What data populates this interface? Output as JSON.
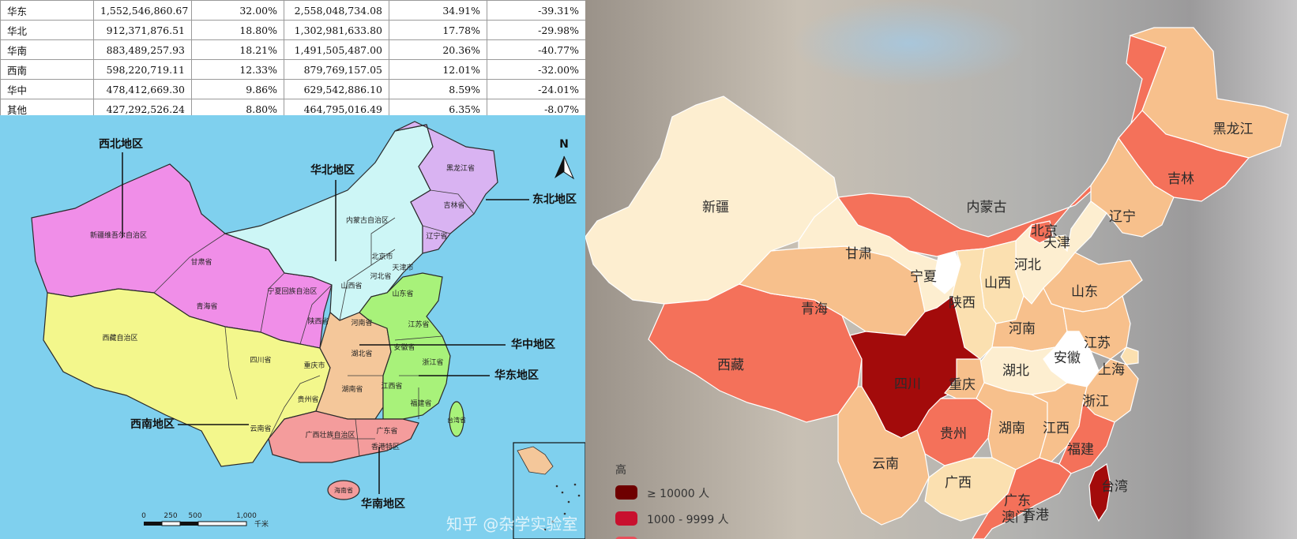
{
  "table": {
    "rows": [
      {
        "region": "华东",
        "v1": "1,552,546,860.67",
        "p1": "32.00%",
        "v2": "2,558,048,734.08",
        "p2": "34.91%",
        "chg": "-39.31%"
      },
      {
        "region": "华北",
        "v1": "912,371,876.51",
        "p1": "18.80%",
        "v2": "1,302,981,633.80",
        "p2": "17.78%",
        "chg": "-29.98%"
      },
      {
        "region": "华南",
        "v1": "883,489,257.93",
        "p1": "18.21%",
        "v2": "1,491,505,487.00",
        "p2": "20.36%",
        "chg": "-40.77%"
      },
      {
        "region": "西南",
        "v1": "598,220,719.11",
        "p1": "12.33%",
        "v2": "879,769,157.05",
        "p2": "12.01%",
        "chg": "-32.00%"
      },
      {
        "region": "华中",
        "v1": "478,412,669.30",
        "p1": "9.86%",
        "v2": "629,542,886.10",
        "p2": "8.59%",
        "chg": "-24.01%"
      },
      {
        "region": "其他",
        "v1": "427,292,526.24",
        "p1": "8.80%",
        "v2": "464,795,016.49",
        "p2": "6.35%",
        "chg": "-8.07%"
      }
    ]
  },
  "left_map": {
    "north_arrow": "N",
    "regions": {
      "northwest": "西北地区",
      "north": "华北地区",
      "northeast": "东北地区",
      "central": "华中地区",
      "east": "华东地区",
      "southwest": "西南地区",
      "south": "华南地区"
    },
    "provinces": {
      "xinjiang": "新疆维吾尔自治区",
      "gansu": "甘肃省",
      "qinghai": "青海省",
      "ningxia": "宁夏回族自治区",
      "shaanxi": "陕西省",
      "neimenggu": "内蒙古自治区",
      "beijing": "北京市",
      "tianjin": "天津市",
      "hebei": "河北省",
      "shanxi": "山西省",
      "heilongjiang": "黑龙江省",
      "jilin": "吉林省",
      "liaoning": "辽宁省",
      "shandong": "山东省",
      "jiangsu": "江苏省",
      "anhui": "安徽省",
      "zhejiang": "浙江省",
      "jiangxi": "江西省",
      "fujian": "福建省",
      "taiwan": "台湾省",
      "henan": "河南省",
      "hubei": "湖北省",
      "hunan": "湖南省",
      "xizang": "西藏自治区",
      "sichuan": "四川省",
      "chongqing": "重庆市",
      "guizhou": "贵州省",
      "yunnan": "云南省",
      "guangxi": "广西壮族自治区",
      "guangdong": "广东省",
      "hongkong": "香港特区",
      "hainan": "海南省"
    },
    "scale": {
      "t0": "0",
      "t1": "250",
      "t2": "500",
      "t3": "1,000",
      "unit": "千米"
    },
    "colors": {
      "sea": "#7fd0ee",
      "northwest": "#f08ee8",
      "north": "#cdf6f6",
      "northeast": "#d9b3f2",
      "east": "#a8f27a",
      "central": "#f4c79a",
      "southwest": "#f3f78c",
      "south": "#f49c9c"
    }
  },
  "right_map": {
    "provinces": {
      "xinjiang": "新疆",
      "xizang": "西藏",
      "qinghai": "青海",
      "gansu": "甘肃",
      "ningxia": "宁夏",
      "neimenggu": "内蒙古",
      "heilongjiang": "黑龙江",
      "jilin": "吉林",
      "liaoning": "辽宁",
      "beijing": "北京",
      "tianjin": "天津",
      "hebei": "河北",
      "shanxi": "山西",
      "shandong": "山东",
      "shaanxi": "陕西",
      "henan": "河南",
      "jiangsu": "江苏",
      "anhui": "安徽",
      "shanghai": "上海",
      "sichuan": "四川",
      "chongqing": "重庆",
      "hubei": "湖北",
      "zhejiang": "浙江",
      "guizhou": "贵州",
      "hunan": "湖南",
      "jiangxi": "江西",
      "fujian": "福建",
      "yunnan": "云南",
      "guangxi": "广西",
      "guangdong": "广东",
      "taiwan": "台湾",
      "aomen": "澳门",
      "xianggang": "香港"
    },
    "legend": {
      "title": "高",
      "items": [
        {
          "label": "≥ 10000 人",
          "color": "#6e0000"
        },
        {
          "label": "1000 - 9999 人",
          "color": "#c8102e"
        }
      ]
    },
    "colors": {
      "darkest": "#a30b0b",
      "salmon": "#f4715a",
      "orange": "#f7c08c",
      "light": "#fbe0b0",
      "cream": "#fdeed0",
      "white": "#ffffff"
    }
  },
  "watermark": "知乎 @杂学实验室"
}
